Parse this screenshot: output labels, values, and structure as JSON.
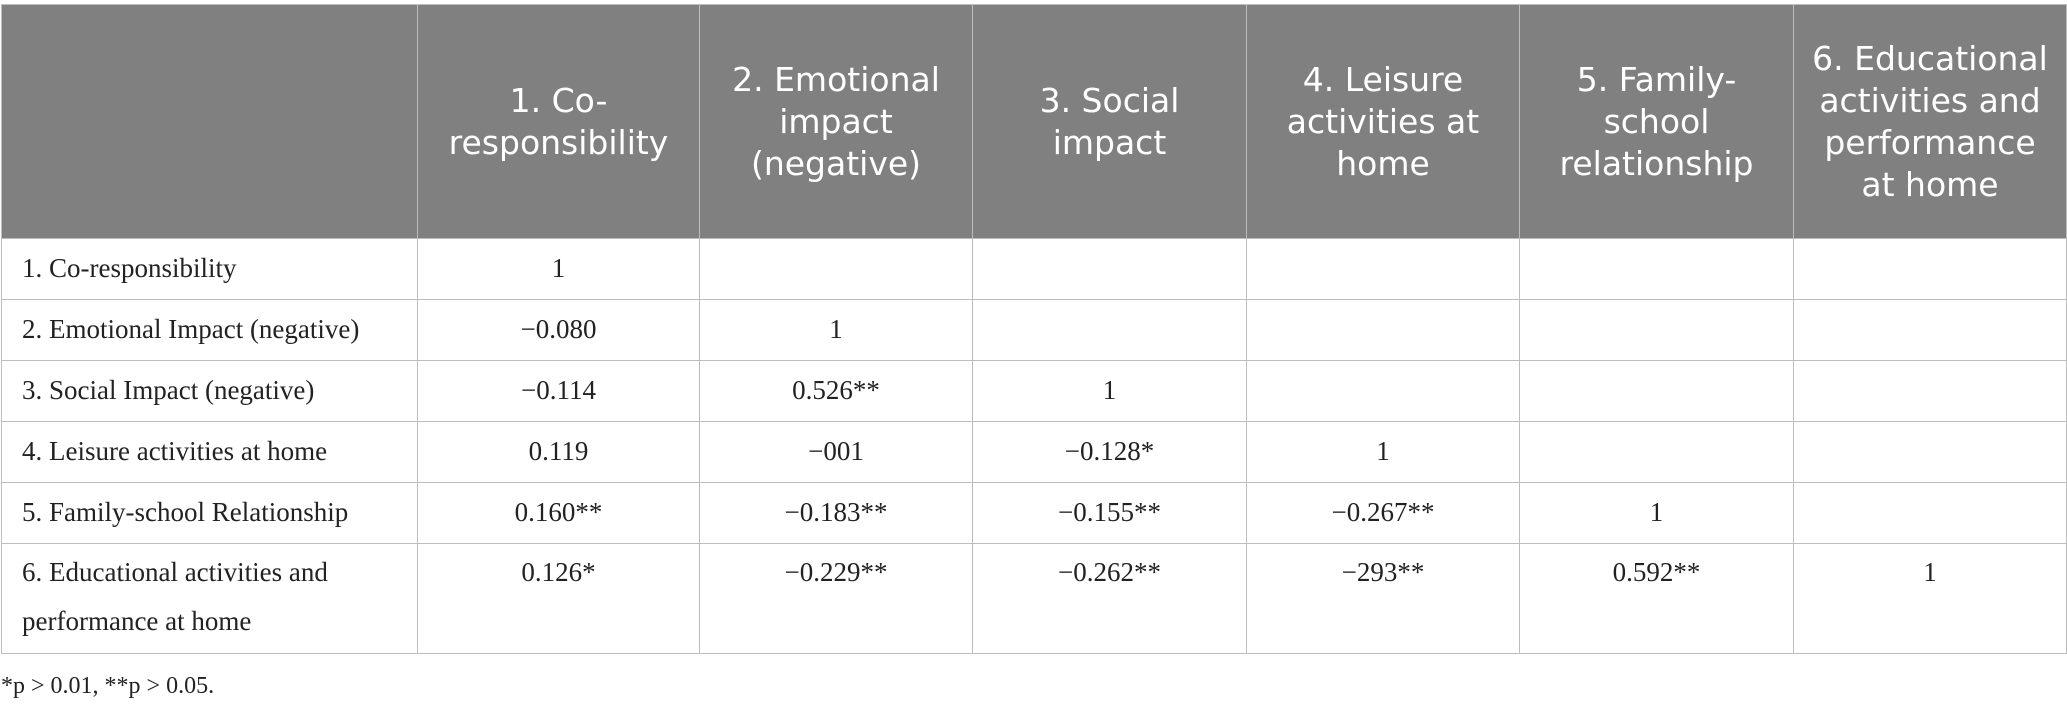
{
  "headers": [
    "",
    "1. Co-responsibility",
    "2. Emotional impact (negative)",
    "3. Social impact",
    "4. Leisure activities at home",
    "5. Family-school relationship",
    "6. Educational activities and performance at home"
  ],
  "rows": [
    {
      "label": "1. Co-responsibility",
      "values": [
        "1",
        "",
        "",
        "",
        "",
        ""
      ]
    },
    {
      "label": "2. Emotional Impact (negative)",
      "values": [
        "−0.080",
        "1",
        "",
        "",
        "",
        ""
      ]
    },
    {
      "label": "3. Social Impact (negative)",
      "values": [
        "−0.114",
        "0.526**",
        "1",
        "",
        "",
        ""
      ]
    },
    {
      "label": "4. Leisure activities at home",
      "values": [
        "0.119",
        "−001",
        "−0.128*",
        "1",
        "",
        ""
      ]
    },
    {
      "label": "5. Family-school Relationship",
      "values": [
        "0.160**",
        "−0.183**",
        "−0.155**",
        "−0.267**",
        "1",
        ""
      ]
    },
    {
      "label": "6. Educational activities and performance at home",
      "values": [
        "0.126*",
        "−0.229**",
        "−0.262**",
        "−293**",
        "0.592**",
        "1"
      ]
    }
  ],
  "footnote": "*p > 0.01, **p > 0.05."
}
